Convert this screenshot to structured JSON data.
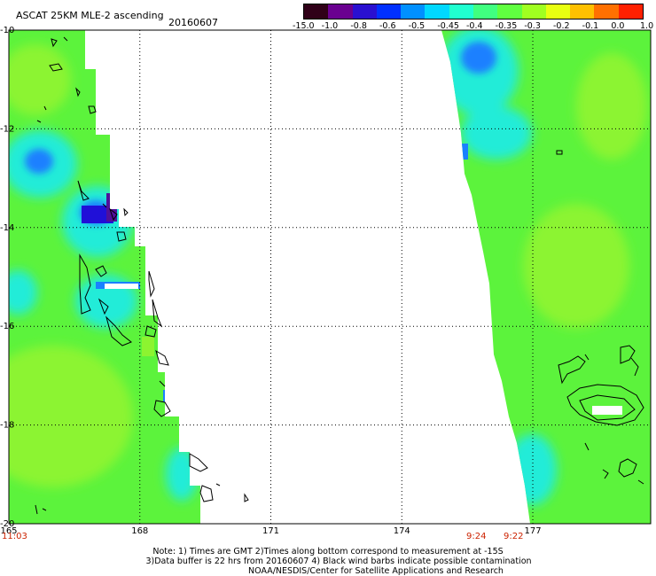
{
  "header": {
    "product": "ASCAT 25KM MLE-2 ascending",
    "date": "20160607"
  },
  "colorbar": {
    "labels": [
      "-15.0",
      "-1.0",
      "-0.8",
      "-0.6",
      "-0.5",
      "-0.45",
      "-0.4",
      "-0.35",
      "-0.3",
      "-0.2",
      "-0.1",
      "0.0",
      "1.0"
    ],
    "colors": [
      "#300018",
      "#6a0090",
      "#2a10d0",
      "#0030ff",
      "#0090ff",
      "#00d8ff",
      "#20ffd0",
      "#40ff80",
      "#60ff40",
      "#a0ff20",
      "#e8ff10",
      "#ffc000",
      "#ff7000",
      "#ff2000"
    ]
  },
  "axes": {
    "lon_ticks": [
      "165",
      "168",
      "171",
      "174",
      "177"
    ],
    "lat_ticks": [
      "-10",
      "-12",
      "-14",
      "-16",
      "-18",
      "-20"
    ],
    "lon_range": [
      165,
      179.7
    ],
    "lat_range": [
      -10,
      -20
    ]
  },
  "pass_times": [
    "11:03",
    "9:24",
    "9:22"
  ],
  "swath_colors": {
    "base": "#5cf33c",
    "light": "#8cf430",
    "cyan": "#22ecd8",
    "blue": "#1a80ff",
    "deep": "#2010d8",
    "purple": "#50109a"
  },
  "notes": {
    "line1": "Note: 1) Times are GMT 2)Times along bottom correspond to measurement at -15S",
    "line2": "3)Data buffer is 22 hrs from 20160607 4) Black wind barbs indicate possible contamination",
    "line3": "NOAA/NESDIS/Center for Satellite Applications and Research"
  }
}
